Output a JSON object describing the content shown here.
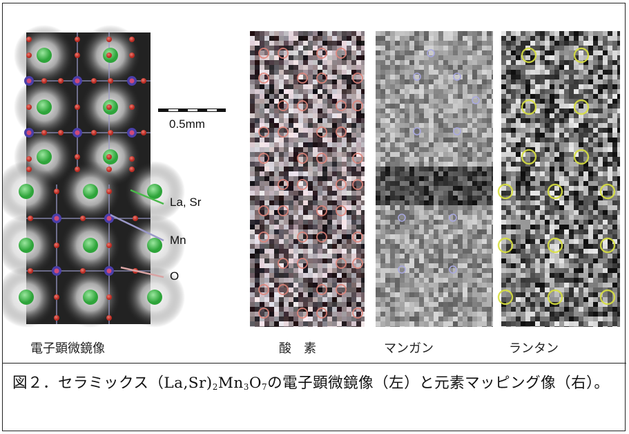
{
  "labels": {
    "em_panel": "電子顕微鏡像",
    "oxygen_panel": "酸　素",
    "manganese_panel": "マンガン",
    "lanthanum_panel": "ランタン"
  },
  "scalebar": {
    "text": "0.5mm"
  },
  "legend": {
    "la_sr": "La, Sr",
    "mn": "Mn",
    "o": "O"
  },
  "caption": {
    "prefix": "図２．セラミックス（La,Sr)",
    "sub1": "2",
    "mn": "Mn",
    "sub2": "3",
    "o": "O",
    "sub3": "7",
    "suffix": "の電子顕微鏡像（左）と元素マッピング像（右）。"
  },
  "colors": {
    "la_sr": "#3fbf4a",
    "mn": "#4a3fa8",
    "o": "#c8322a",
    "la_sr_line": "#4ab84a",
    "mn_line": "#9a98c8",
    "o_line": "#d8a4a4",
    "oxygen_marker": "#e0857a",
    "mn_marker": "#a8a8e0",
    "la_marker": "#d8e040"
  }
}
